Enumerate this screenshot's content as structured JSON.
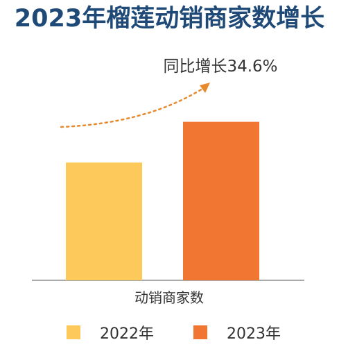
{
  "title": "2023年榴莲动销商家数增长",
  "chart_data": {
    "type": "bar",
    "categories": [
      "动销商家数"
    ],
    "series": [
      {
        "name": "2022年",
        "values": [
          100
        ],
        "color": "#fdc95a"
      },
      {
        "name": "2023年",
        "values": [
          134.6
        ],
        "color": "#f07632"
      }
    ],
    "xlabel": "动销商家数",
    "ylabel": "",
    "ylim": [
      0,
      165
    ],
    "grid": false,
    "legend_position": "bottom",
    "annotation": "同比增长34.6%",
    "arrow_color": "#e8892d"
  }
}
